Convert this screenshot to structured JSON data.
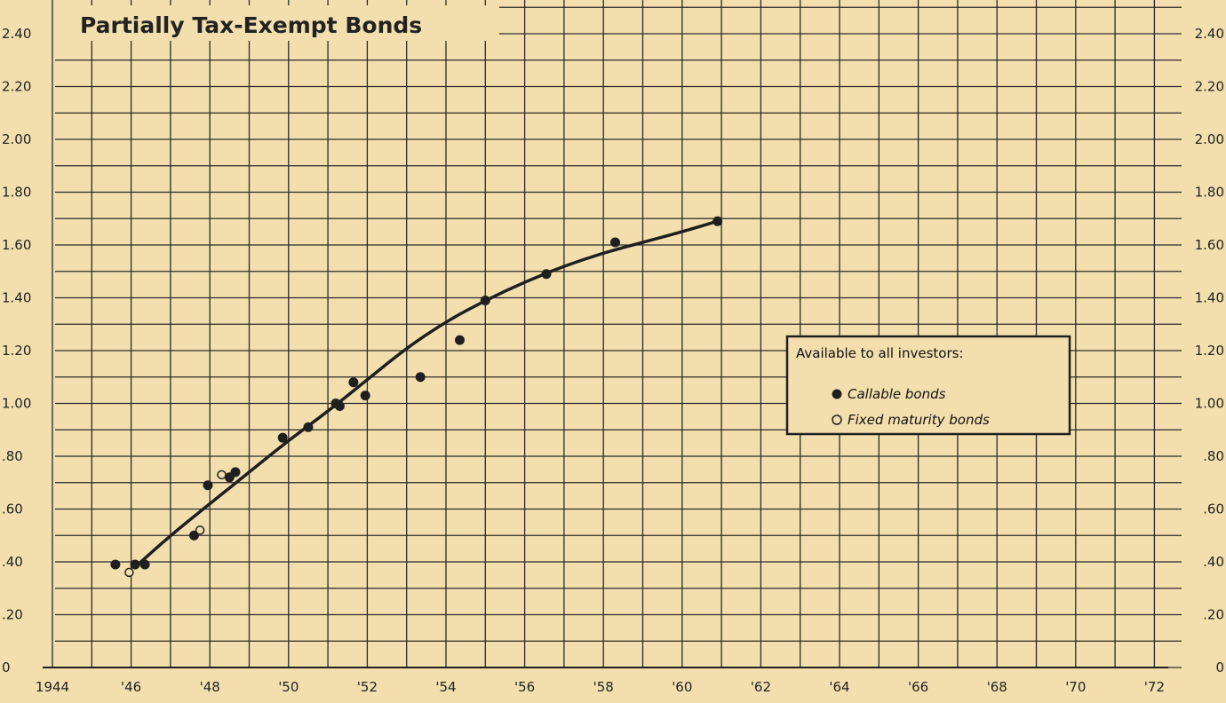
{
  "chart_data": {
    "type": "scatter",
    "title": "Partially Tax-Exempt Bonds",
    "xlabel": "",
    "ylabel": "",
    "xlim": [
      1944,
      1973
    ],
    "ylim": [
      0,
      2.4
    ],
    "x_ticks": [
      1944,
      1946,
      1948,
      1950,
      1952,
      1954,
      1956,
      1958,
      1960,
      1962,
      1964,
      1966,
      1968,
      1970,
      1972
    ],
    "x_tick_labels": [
      "1944",
      "'46",
      "'48",
      "'50",
      "'52",
      "'54",
      "'56",
      "'58",
      "'60",
      "'62",
      "'64",
      "'66",
      "'68",
      "'70",
      "'72"
    ],
    "y_ticks": [
      0,
      0.2,
      0.4,
      0.6,
      0.8,
      1.0,
      1.2,
      1.4,
      1.6,
      1.8,
      2.0,
      2.2,
      2.4
    ],
    "y_tick_labels": [
      "0",
      ".20",
      ".40",
      ".60",
      ".80",
      "1.00",
      "1.20",
      "1.40",
      "1.60",
      "1.80",
      "2.00",
      "2.20",
      "2.40"
    ],
    "grid": true,
    "legend_position": "center-right",
    "legend_title": "Available to all investors:",
    "series": [
      {
        "name": "Callable bonds",
        "marker": "filled-circle",
        "points": [
          [
            1945.6,
            0.39
          ],
          [
            1946.1,
            0.39
          ],
          [
            1946.35,
            0.39
          ],
          [
            1947.6,
            0.5
          ],
          [
            1947.95,
            0.69
          ],
          [
            1948.5,
            0.72
          ],
          [
            1948.65,
            0.74
          ],
          [
            1949.85,
            0.87
          ],
          [
            1950.5,
            0.91
          ],
          [
            1951.2,
            1.0
          ],
          [
            1951.3,
            0.99
          ],
          [
            1951.65,
            1.08
          ],
          [
            1951.95,
            1.03
          ],
          [
            1953.35,
            1.1
          ],
          [
            1954.35,
            1.24
          ],
          [
            1955.0,
            1.39
          ],
          [
            1956.55,
            1.49
          ],
          [
            1958.3,
            1.61
          ],
          [
            1960.9,
            1.69
          ]
        ]
      },
      {
        "name": "Fixed maturity bonds",
        "marker": "open-circle",
        "points": [
          [
            1945.95,
            0.36
          ],
          [
            1947.75,
            0.52
          ],
          [
            1948.3,
            0.73
          ]
        ]
      }
    ],
    "fitted_curve": {
      "points": [
        [
          1946.1,
          0.38
        ],
        [
          1947.0,
          0.5
        ],
        [
          1948.0,
          0.62
        ],
        [
          1949.0,
          0.74
        ],
        [
          1950.0,
          0.86
        ],
        [
          1951.0,
          0.97
        ],
        [
          1952.0,
          1.09
        ],
        [
          1953.0,
          1.21
        ],
        [
          1954.0,
          1.31
        ],
        [
          1955.0,
          1.39
        ],
        [
          1956.0,
          1.46
        ],
        [
          1957.0,
          1.52
        ],
        [
          1958.0,
          1.57
        ],
        [
          1959.0,
          1.61
        ],
        [
          1960.0,
          1.65
        ],
        [
          1960.9,
          1.69
        ]
      ]
    }
  },
  "colors": {
    "background": "#f3dfae",
    "ink": "#1f1f1f",
    "grid": "#2a2a2a"
  }
}
